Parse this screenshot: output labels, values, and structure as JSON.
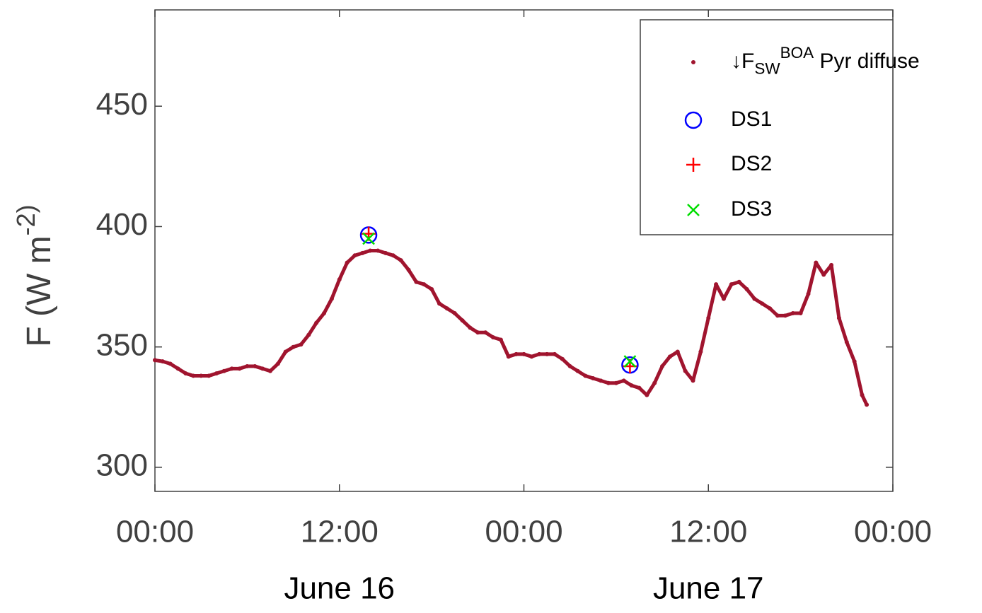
{
  "chart_data": {
    "type": "scatter",
    "ylabel": "F (W m^-2)",
    "xlim": [
      0,
      48
    ],
    "ylim": [
      290,
      490
    ],
    "xticks": [
      {
        "value": 0,
        "label": "00:00"
      },
      {
        "value": 12,
        "label": "12:00"
      },
      {
        "value": 24,
        "label": "00:00"
      },
      {
        "value": 36,
        "label": "12:00"
      },
      {
        "value": 48,
        "label": "00:00"
      }
    ],
    "yticks": [
      300,
      350,
      400,
      450
    ],
    "annotations": [
      {
        "text": "June 16",
        "x": 12
      },
      {
        "text": "June 17",
        "x": 36
      }
    ],
    "legend": "upper right",
    "series": [
      {
        "name": "↓F_SW^BOA Pyr diffuse",
        "color": "#a0142e",
        "marker": "dot",
        "x": [
          0,
          0.5,
          1,
          1.5,
          2,
          2.5,
          3,
          3.5,
          4,
          4.5,
          5,
          5.5,
          6,
          6.5,
          7,
          7.5,
          8,
          8.5,
          9,
          9.5,
          10,
          10.5,
          11,
          11.5,
          12,
          12.5,
          13,
          13.5,
          14,
          14.5,
          15,
          15.5,
          16,
          16.5,
          17,
          17.5,
          18,
          18.5,
          19,
          19.5,
          20,
          20.5,
          21,
          21.5,
          22,
          22.5,
          23,
          23.5,
          24,
          24.5,
          25,
          25.5,
          26,
          26.5,
          27,
          27.5,
          28,
          28.5,
          29,
          29.5,
          30,
          30.5,
          31,
          31.5,
          32,
          32.5,
          33,
          33.5,
          34,
          34.5,
          35,
          35.5,
          36,
          36.5,
          37,
          37.5,
          38,
          38.5,
          39,
          39.5,
          40,
          40.5,
          41,
          41.5,
          42,
          42.5,
          43,
          43.5,
          44,
          44.5,
          45,
          45.5,
          46,
          46.3
        ],
        "values": [
          344.5,
          344,
          343,
          341,
          339,
          338,
          338,
          338,
          339,
          340,
          341,
          341,
          342,
          342,
          341,
          340,
          343,
          348,
          350,
          351,
          355,
          360,
          364,
          370,
          378,
          385,
          388,
          389,
          390,
          390,
          389,
          388,
          386,
          382,
          377,
          376,
          374,
          368,
          366,
          364,
          361,
          358,
          356,
          356,
          354,
          353,
          346,
          347,
          347,
          346,
          347,
          347,
          347,
          345,
          342,
          340,
          338,
          337,
          336,
          335,
          335,
          336,
          334,
          333,
          330,
          335,
          342,
          346,
          348,
          340,
          336,
          348,
          362,
          376,
          370,
          376,
          377,
          374,
          370,
          368,
          366,
          363,
          363,
          364,
          364,
          372,
          385,
          380,
          384,
          362,
          352,
          344,
          330,
          326
        ]
      },
      {
        "name": "DS1",
        "color": "#0000ff",
        "marker": "circle",
        "x": [
          13.9,
          30.9
        ],
        "values": [
          396.5,
          342.5
        ]
      },
      {
        "name": "DS2",
        "color": "#ff0000",
        "marker": "plus",
        "x": [
          13.9,
          30.9
        ],
        "values": [
          397,
          342
        ]
      },
      {
        "name": "DS3",
        "color": "#00dd00",
        "marker": "cross",
        "x": [
          13.9,
          30.9
        ],
        "values": [
          395,
          344
        ]
      }
    ]
  }
}
